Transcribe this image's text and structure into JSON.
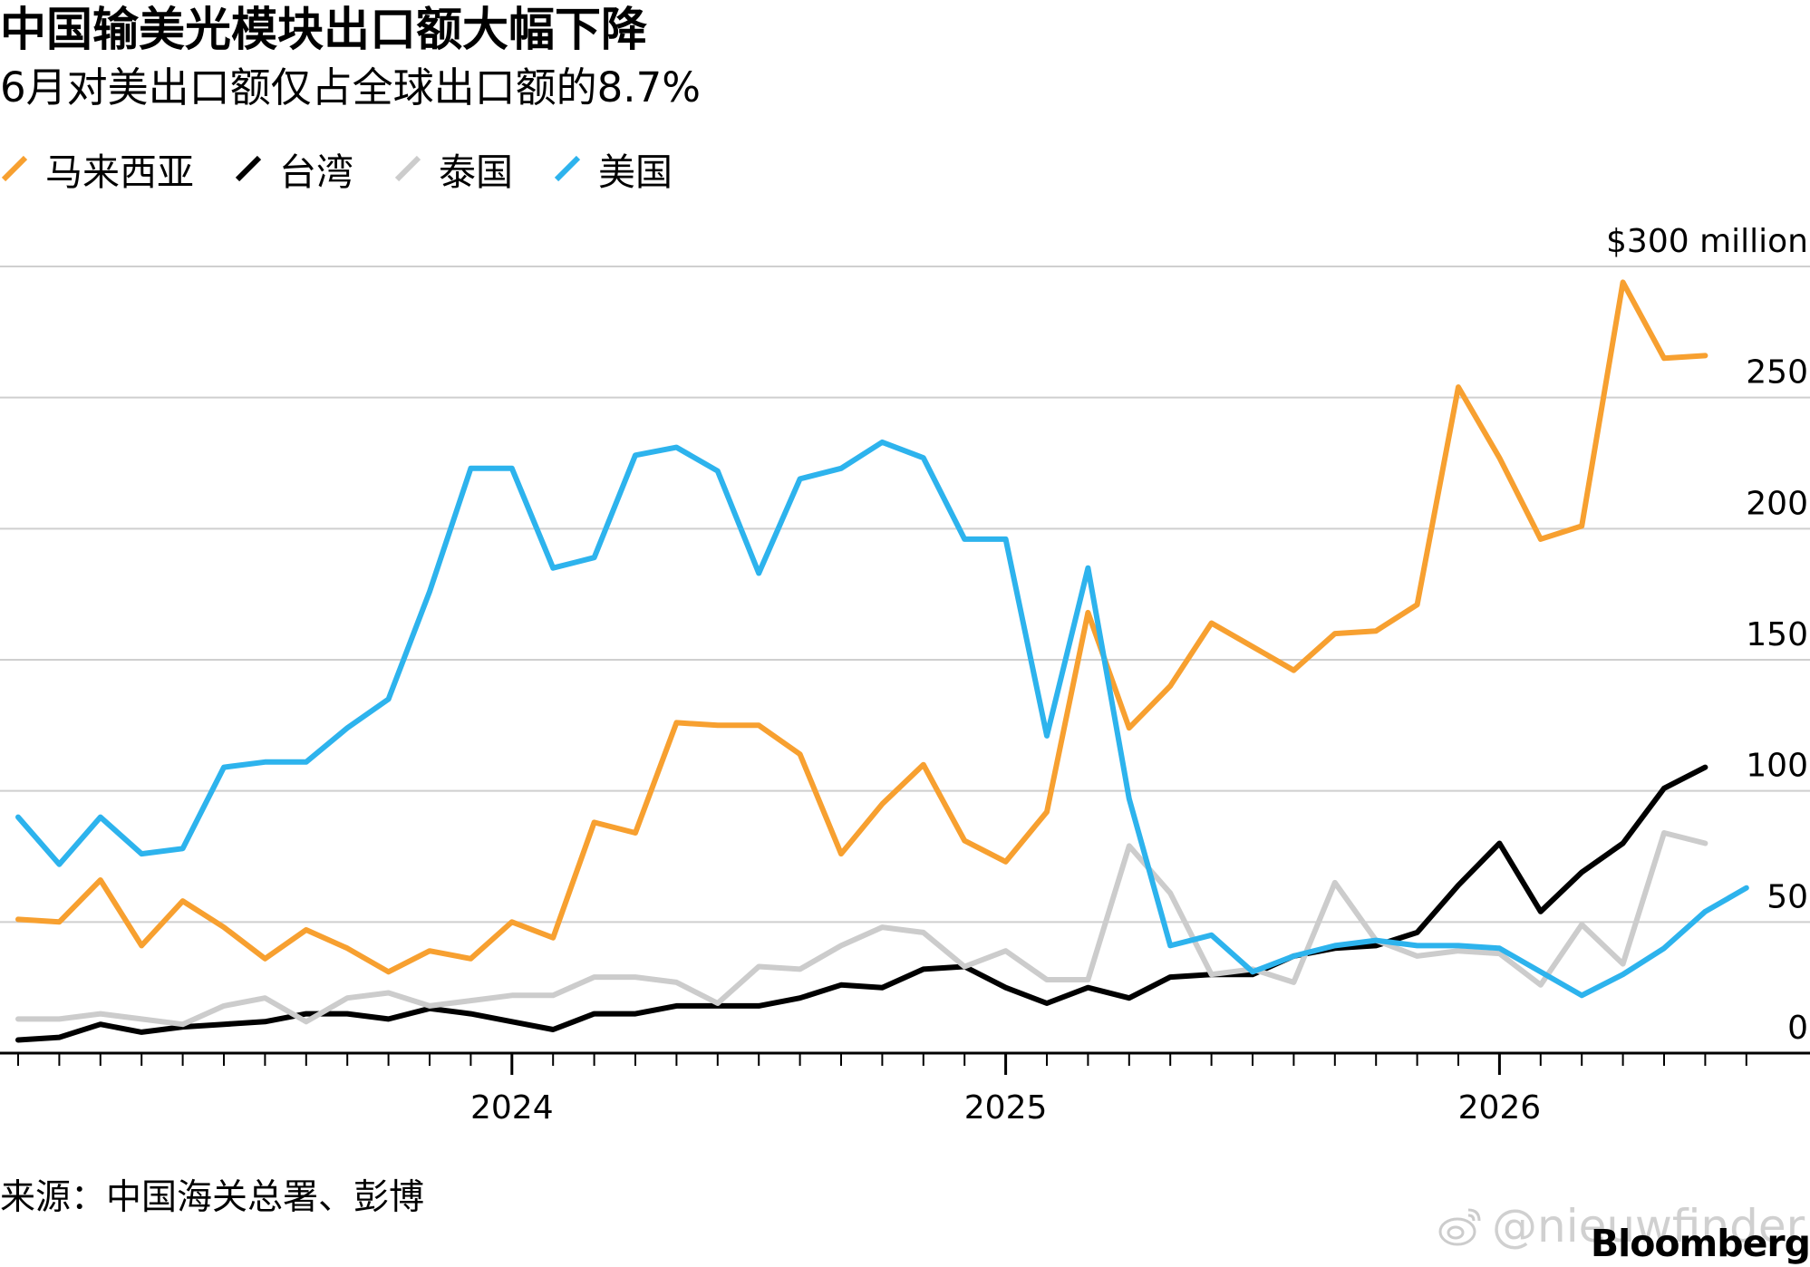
{
  "title": "中国输美光模块出口额大幅下降",
  "subtitle": "6月对美出口额仅占全球出口额的8.7%",
  "source": "来源：中国海关总署、彭博",
  "brand": "Bloomberg",
  "watermark": "@nieuwfinder",
  "chart_data": {
    "type": "line",
    "title": "中国输美光模块出口额大幅下降",
    "subtitle": "6月对美出口额仅占全球出口额的8.7%",
    "xlabel": "",
    "ylabel": "",
    "y_unit_label": "$300 million",
    "ylim": [
      0,
      300
    ],
    "yticks": [
      0,
      50,
      100,
      150,
      200,
      250,
      300
    ],
    "ytick_labels": [
      "0",
      "50",
      "100",
      "150",
      "200",
      "250",
      "$300 million"
    ],
    "x_year_labels": [
      "2024",
      "2025",
      "2026"
    ],
    "grid": true,
    "legend_position": "top-left",
    "x_start_month": "2023-01",
    "x": [
      "2023-01",
      "2023-02",
      "2023-03",
      "2023-04",
      "2023-05",
      "2023-06",
      "2023-07",
      "2023-08",
      "2023-09",
      "2023-10",
      "2023-11",
      "2023-12",
      "2024-01",
      "2024-02",
      "2024-03",
      "2024-04",
      "2024-05",
      "2024-06",
      "2024-07",
      "2024-08",
      "2024-09",
      "2024-10",
      "2024-11",
      "2024-12",
      "2025-01",
      "2025-02",
      "2025-03",
      "2025-04",
      "2025-05",
      "2025-06",
      "2025-07",
      "2025-08",
      "2025-09",
      "2025-10",
      "2025-11",
      "2025-12",
      "2026-01",
      "2026-02",
      "2026-03",
      "2026-04",
      "2026-05",
      "2026-06",
      "2026-07"
    ],
    "series": [
      {
        "name": "马来西亚",
        "color": "#f7a030",
        "values": [
          51,
          50,
          66,
          41,
          58,
          48,
          36,
          47,
          40,
          31,
          39,
          36,
          50,
          44,
          88,
          84,
          126,
          125,
          125,
          114,
          76,
          95,
          110,
          81,
          73,
          92,
          168,
          124,
          140,
          164,
          155,
          146,
          160,
          161,
          171,
          254,
          227,
          196,
          201,
          294,
          265,
          266,
          null
        ]
      },
      {
        "name": "台湾",
        "color": "#000000",
        "values": [
          5,
          6,
          11,
          8,
          10,
          11,
          12,
          15,
          15,
          13,
          17,
          15,
          12,
          9,
          15,
          15,
          18,
          18,
          18,
          21,
          26,
          25,
          32,
          33,
          25,
          19,
          25,
          21,
          29,
          30,
          30,
          37,
          40,
          41,
          46,
          64,
          80,
          54,
          69,
          80,
          101,
          109,
          null
        ]
      },
      {
        "name": "泰国",
        "color": "#cccccc",
        "values": [
          13,
          13,
          15,
          13,
          11,
          18,
          21,
          12,
          21,
          23,
          18,
          20,
          22,
          22,
          29,
          29,
          27,
          19,
          33,
          32,
          41,
          48,
          46,
          33,
          39,
          28,
          28,
          79,
          61,
          30,
          32,
          27,
          65,
          43,
          37,
          39,
          38,
          26,
          49,
          34,
          84,
          80,
          null
        ]
      },
      {
        "name": "美国",
        "color": "#2db3ed",
        "values": [
          90,
          72,
          90,
          76,
          78,
          109,
          111,
          111,
          124,
          135,
          176,
          223,
          223,
          185,
          189,
          228,
          231,
          222,
          183,
          219,
          223,
          233,
          227,
          196,
          196,
          121,
          185,
          97,
          41,
          45,
          31,
          37,
          41,
          43,
          41,
          41,
          40,
          31,
          22,
          30,
          40,
          54,
          63
        ]
      }
    ]
  }
}
